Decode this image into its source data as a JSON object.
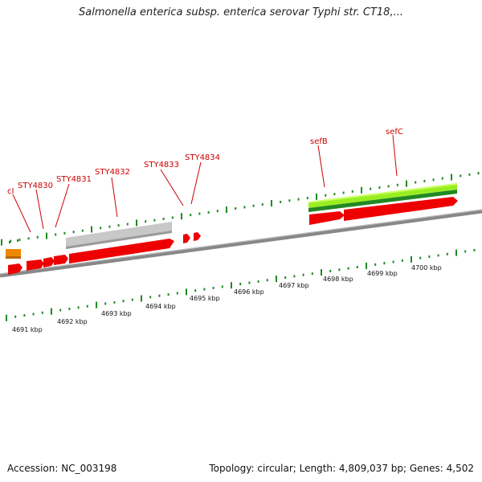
{
  "title": "Salmonella enterica subsp. enterica serovar Typhi str. CT18,...",
  "footer": {
    "accession": "Accession: NC_003198",
    "summary": "Topology: circular; Length: 4,809,037 bp; Genes: 4,502"
  },
  "genes": [
    {
      "name": "cI"
    },
    {
      "name": "STY4830"
    },
    {
      "name": "STY4831"
    },
    {
      "name": "STY4832"
    },
    {
      "name": "STY4833"
    },
    {
      "name": "STY4834"
    },
    {
      "name": "sefB"
    },
    {
      "name": "sefC"
    }
  ],
  "kbp_ticks": [
    "4691 kbp",
    "4692 kbp",
    "4693 kbp",
    "4694 kbp",
    "4695 kbp",
    "4696 kbp",
    "4697 kbp",
    "4698 kbp",
    "4699 kbp",
    "4700 kbp"
  ],
  "colors": {
    "gene_red": "#ee0000",
    "gene_orange": "#ee8800",
    "pseudo_grey": "#c8c8c8",
    "feature_green_light": "#99ee22",
    "feature_green_dark": "#228822",
    "backbone": "#888888",
    "tick_green": "#228822",
    "label_red": "#cc0000"
  }
}
